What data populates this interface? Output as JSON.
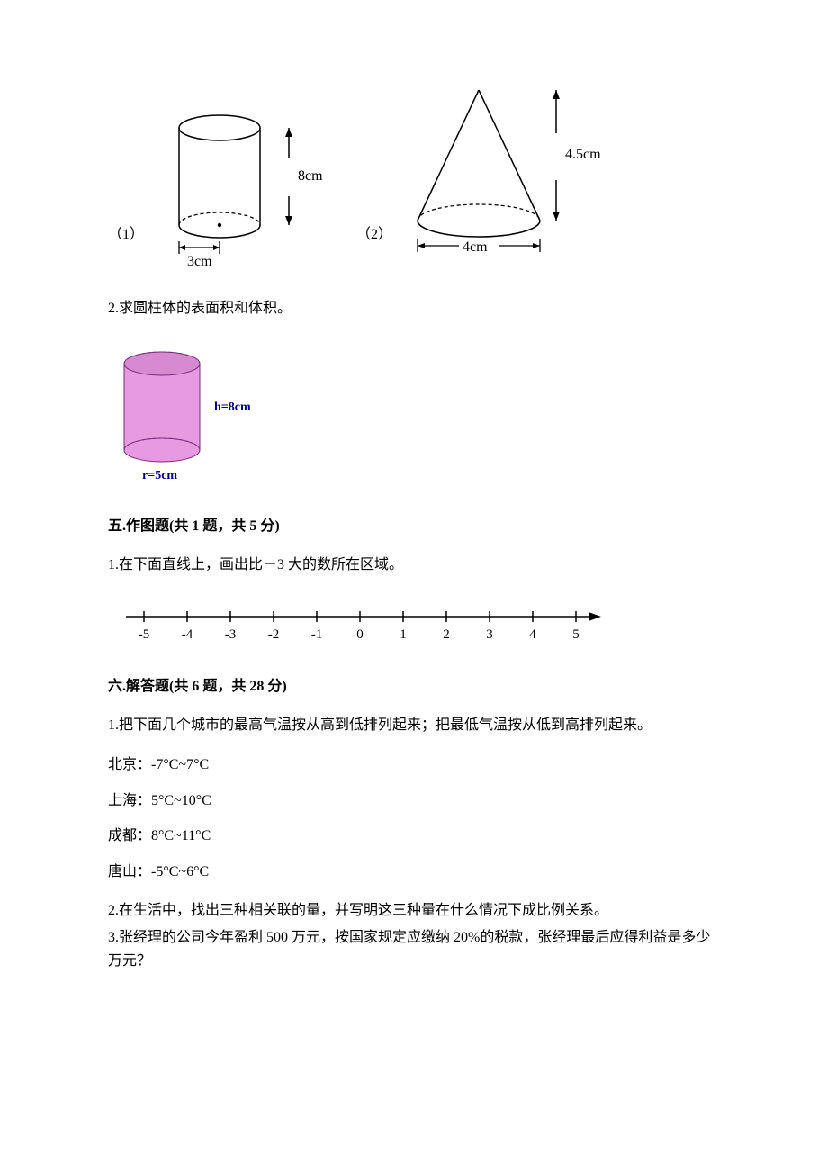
{
  "figures": {
    "cylinder1": {
      "label": "（1）",
      "radius_label": "3cm",
      "height_label": "8cm",
      "stroke": "#000000",
      "fill": "#ffffff",
      "dash": "4,3"
    },
    "cone": {
      "label": "（2）",
      "base_label": "4cm",
      "height_label": "4.5cm",
      "stroke": "#000000",
      "fill": "#ffffff",
      "dash": "4,3"
    },
    "cylinder2": {
      "h_label": "h=8cm",
      "r_label": "r=5cm",
      "stroke": "#7a2a7a",
      "fill": "#e79ae0",
      "top_fill": "#d68ad0",
      "label_color": "#000080",
      "dash": "3,3"
    }
  },
  "q2_text": "2.求圆柱体的表面积和体积。",
  "section5": {
    "title": "五.作图题(共 1 题，共 5 分)",
    "q1": "1.在下面直线上，画出比－3 大的数所在区域。"
  },
  "number_line": {
    "min": -5,
    "max": 5,
    "ticks": [
      "-5",
      "-4",
      "-3",
      "-2",
      "-1",
      "0",
      "1",
      "2",
      "3",
      "4",
      "5"
    ],
    "stroke": "#000000",
    "label_fontsize": 15
  },
  "section6": {
    "title": "六.解答题(共 6 题，共 28 分)",
    "q1": "1.把下面几个城市的最高气温按从高到低排列起来；把最低气温按从低到高排列起来。",
    "cities": [
      {
        "name": "北京",
        "range": "-7°C~7°C"
      },
      {
        "name": "上海",
        "range": "5°C~10°C"
      },
      {
        "name": "成都",
        "range": "8°C~11°C"
      },
      {
        "name": "唐山",
        "range": "-5°C~6°C"
      }
    ],
    "q2": "2.在生活中，找出三种相关联的量，并写明这三种量在什么情况下成比例关系。",
    "q3": "3.张经理的公司今年盈利 500 万元，按国家规定应缴纳 20%的税款，张经理最后应得利益是多少万元？"
  }
}
